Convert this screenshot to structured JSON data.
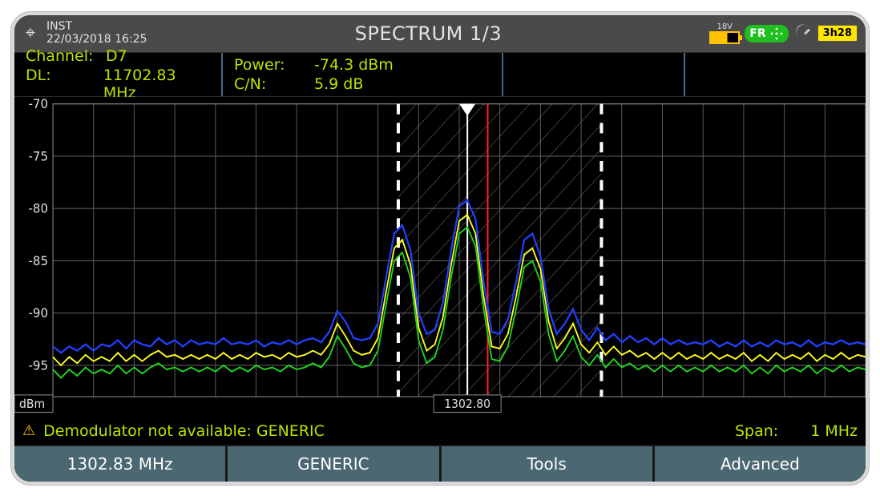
{
  "top": {
    "inst_label": "INST",
    "datetime": "22/03/2018 16:25",
    "title": "SPECTRUM 1/3",
    "battery_voltage": "18V",
    "lang_badge": "FR",
    "time_badge": "3h28"
  },
  "info": {
    "channel_k": "Channel:",
    "channel_v": "D7",
    "dl_k": "DL:",
    "dl_v": "11702.83 MHz",
    "power_k": "Power:",
    "power_v": "-74.3 dBm",
    "cn_k": "C/N:",
    "cn_v": "5.9 dB"
  },
  "chart": {
    "type": "line-spectrum",
    "y_unit_label": "dBm",
    "ylim": [
      -98,
      -70
    ],
    "yticks": [
      -70,
      -75,
      -80,
      -85,
      -90,
      -95
    ],
    "x_columns": 20,
    "marker_freq_label": "1302.80",
    "marker_band_left_col": 8.5,
    "marker_band_right_col": 13.5,
    "center_marker_col": 10.2,
    "red_marker_col": 10.7,
    "colors": {
      "grid": "#5a5a5a",
      "grid_bold": "#888",
      "axis_text": "#e0e0e0",
      "trace_blue": "#2040ff",
      "trace_yellow": "#ffff20",
      "trace_green": "#20d820",
      "hatch": "#888",
      "dash": "#ffffff",
      "red": "#ff2020"
    },
    "traces": {
      "blue": [
        -93.2,
        -93.8,
        -93.2,
        -93.6,
        -93.0,
        -93.6,
        -93.0,
        -93.2,
        -92.6,
        -93.4,
        -92.6,
        -93.0,
        -93.2,
        -92.4,
        -93.0,
        -92.6,
        -93.2,
        -92.6,
        -93.0,
        -92.8,
        -93.0,
        -92.4,
        -93.0,
        -92.8,
        -93.0,
        -92.6,
        -93.2,
        -92.8,
        -93.0,
        -92.6,
        -93.0,
        -92.6,
        -92.4,
        -92.8,
        -91.8,
        -89.8,
        -90.8,
        -92.4,
        -92.6,
        -92.4,
        -91.0,
        -86.6,
        -82.4,
        -81.6,
        -84.0,
        -90.0,
        -92.0,
        -91.6,
        -89.0,
        -84.0,
        -79.8,
        -79.2,
        -81.0,
        -87.0,
        -91.8,
        -92.0,
        -90.6,
        -87.0,
        -83.0,
        -82.4,
        -84.6,
        -89.6,
        -92.0,
        -91.0,
        -89.6,
        -91.6,
        -92.6,
        -91.4,
        -92.6,
        -92.0,
        -92.8,
        -92.2,
        -92.8,
        -92.4,
        -93.0,
        -92.4,
        -93.0,
        -92.6,
        -93.0,
        -92.8,
        -93.0,
        -92.6,
        -93.2,
        -92.8,
        -93.2,
        -92.6,
        -93.2,
        -92.8,
        -93.2,
        -92.6,
        -93.0,
        -92.8,
        -93.2,
        -92.6,
        -93.2,
        -92.8,
        -93.0,
        -92.6,
        -93.0,
        -92.8,
        -93.0
      ],
      "yellow": [
        -94.2,
        -95.0,
        -94.2,
        -94.8,
        -94.0,
        -94.6,
        -94.2,
        -94.6,
        -93.8,
        -94.6,
        -94.0,
        -94.6,
        -94.0,
        -93.6,
        -94.2,
        -94.0,
        -94.4,
        -94.0,
        -94.4,
        -94.0,
        -94.4,
        -93.8,
        -94.4,
        -94.0,
        -94.4,
        -93.8,
        -94.2,
        -94.0,
        -94.4,
        -93.8,
        -94.2,
        -94.0,
        -93.6,
        -94.0,
        -93.0,
        -91.0,
        -92.2,
        -93.6,
        -94.0,
        -93.8,
        -92.4,
        -88.0,
        -83.8,
        -83.0,
        -85.4,
        -91.4,
        -93.6,
        -93.0,
        -90.4,
        -85.4,
        -81.2,
        -80.6,
        -82.4,
        -88.4,
        -93.2,
        -93.4,
        -92.0,
        -88.4,
        -84.4,
        -83.8,
        -85.8,
        -90.8,
        -93.4,
        -92.4,
        -91.0,
        -93.0,
        -93.8,
        -92.8,
        -94.0,
        -93.2,
        -94.0,
        -93.6,
        -94.2,
        -93.8,
        -94.4,
        -93.8,
        -94.4,
        -93.8,
        -94.4,
        -94.0,
        -94.4,
        -93.8,
        -94.4,
        -94.0,
        -94.4,
        -93.8,
        -94.6,
        -94.0,
        -94.6,
        -93.8,
        -94.4,
        -94.0,
        -94.4,
        -93.8,
        -94.6,
        -94.0,
        -94.4,
        -93.8,
        -94.4,
        -94.0,
        -94.2
      ],
      "green": [
        -95.4,
        -96.2,
        -95.4,
        -96.0,
        -95.2,
        -95.8,
        -95.4,
        -95.8,
        -95.0,
        -95.8,
        -95.2,
        -95.8,
        -95.2,
        -94.8,
        -95.4,
        -95.2,
        -95.6,
        -95.2,
        -95.6,
        -95.2,
        -95.6,
        -95.0,
        -95.6,
        -95.2,
        -95.6,
        -95.0,
        -95.4,
        -95.2,
        -95.6,
        -95.0,
        -95.4,
        -95.2,
        -94.8,
        -95.2,
        -94.2,
        -92.2,
        -93.4,
        -94.8,
        -95.2,
        -95.0,
        -93.6,
        -89.2,
        -85.0,
        -84.2,
        -86.6,
        -92.6,
        -94.8,
        -94.2,
        -91.6,
        -86.6,
        -82.4,
        -81.8,
        -83.6,
        -89.6,
        -94.4,
        -94.6,
        -93.2,
        -89.6,
        -85.6,
        -85.0,
        -87.0,
        -92.0,
        -94.6,
        -93.6,
        -92.2,
        -94.2,
        -95.0,
        -94.0,
        -95.2,
        -94.4,
        -95.2,
        -94.8,
        -95.4,
        -95.0,
        -95.6,
        -95.0,
        -95.6,
        -95.0,
        -95.6,
        -95.2,
        -95.6,
        -95.0,
        -95.6,
        -95.2,
        -95.6,
        -95.0,
        -95.8,
        -95.2,
        -95.8,
        -95.0,
        -95.6,
        -95.2,
        -95.6,
        -95.0,
        -95.8,
        -95.2,
        -95.6,
        -95.0,
        -95.6,
        -95.2,
        -95.4
      ]
    }
  },
  "status": {
    "msg": "Demodulator not available: GENERIC",
    "span_k": "Span:",
    "span_v": "1 MHz"
  },
  "buttons": {
    "b1": "1302.83 MHz",
    "b2": "GENERIC",
    "b3": "Tools",
    "b4": "Advanced"
  }
}
